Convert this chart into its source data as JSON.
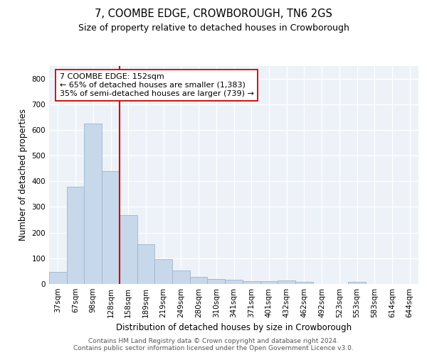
{
  "title": "7, COOMBE EDGE, CROWBOROUGH, TN6 2GS",
  "subtitle": "Size of property relative to detached houses in Crowborough",
  "xlabel": "Distribution of detached houses by size in Crowborough",
  "ylabel": "Number of detached properties",
  "categories": [
    "37sqm",
    "67sqm",
    "98sqm",
    "128sqm",
    "158sqm",
    "189sqm",
    "219sqm",
    "249sqm",
    "280sqm",
    "310sqm",
    "341sqm",
    "371sqm",
    "401sqm",
    "432sqm",
    "462sqm",
    "492sqm",
    "523sqm",
    "553sqm",
    "583sqm",
    "614sqm",
    "644sqm"
  ],
  "values": [
    46,
    380,
    625,
    440,
    268,
    155,
    97,
    52,
    29,
    18,
    16,
    11,
    11,
    14,
    7,
    0,
    0,
    8,
    0,
    0,
    0
  ],
  "bar_color": "#c8d8eb",
  "bar_edge_color": "#9ab5cc",
  "vline_x": 3.5,
  "vline_color": "#cc0000",
  "annotation_line1": "7 COOMBE EDGE: 152sqm",
  "annotation_line2": "← 65% of detached houses are smaller (1,383)",
  "annotation_line3": "35% of semi-detached houses are larger (739) →",
  "annotation_box_edge_color": "#cc0000",
  "footer_line1": "Contains HM Land Registry data © Crown copyright and database right 2024.",
  "footer_line2": "Contains public sector information licensed under the Open Government Licence v3.0.",
  "ylim": [
    0,
    850
  ],
  "yticks": [
    0,
    100,
    200,
    300,
    400,
    500,
    600,
    700,
    800
  ],
  "title_fontsize": 10.5,
  "subtitle_fontsize": 9,
  "axis_label_fontsize": 8.5,
  "tick_fontsize": 7.5,
  "annotation_fontsize": 8,
  "footer_fontsize": 6.5,
  "plot_bg_color": "#edf2f9"
}
